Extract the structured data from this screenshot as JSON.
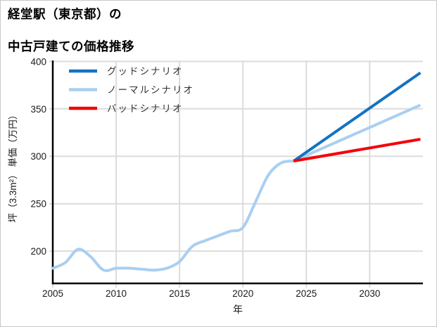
{
  "title": {
    "line1": "経堂駅（東京都）の",
    "line2": "中古戸建ての価格推移"
  },
  "colors": {
    "good_scenario": "#1373c2",
    "normal_scenario": "#a9cff1",
    "bad_scenario": "#f50008",
    "history_line": "#a9cff1",
    "grid": "#dcdcdc",
    "axis": "#000000",
    "tick_text": "#1a1a1a",
    "legend_text": "#333333",
    "background": "#ffffff",
    "page_border": "#c9c9c9"
  },
  "chart_data": {
    "type": "line",
    "title": "経堂駅（東京都）の中古戸建ての価格推移",
    "xlabel": "年",
    "ylabel": "坪（3.3m²） 単価（万円）",
    "x_ticks": [
      2005,
      2010,
      2015,
      2020,
      2025,
      2030
    ],
    "y_ticks": [
      200,
      250,
      300,
      350,
      400
    ],
    "xlim": [
      2005,
      2034.2
    ],
    "ylim": [
      166,
      401
    ],
    "grid": true,
    "legend_position": "upper-left",
    "history": {
      "years": [
        2005,
        2006,
        2007,
        2008,
        2009,
        2010,
        2011,
        2012,
        2013,
        2014,
        2015,
        2016,
        2017,
        2018,
        2019,
        2020,
        2021,
        2022,
        2023,
        2024
      ],
      "values": [
        182,
        188,
        202,
        194,
        180,
        182,
        182,
        181,
        180,
        182,
        189,
        205,
        211,
        216,
        221,
        225,
        252,
        280,
        293,
        295
      ]
    },
    "series": [
      {
        "id": "good",
        "label": "グッドシナリオ",
        "color": "#1373c2",
        "years": [
          2024,
          2034
        ],
        "values": [
          295,
          388
        ]
      },
      {
        "id": "normal",
        "label": "ノーマルシナリオ",
        "color": "#a9cff1",
        "years": [
          2024,
          2034
        ],
        "values": [
          295,
          354
        ]
      },
      {
        "id": "bad",
        "label": "バッドシナリオ",
        "color": "#f50008",
        "years": [
          2024,
          2034
        ],
        "values": [
          295,
          318
        ]
      }
    ]
  }
}
